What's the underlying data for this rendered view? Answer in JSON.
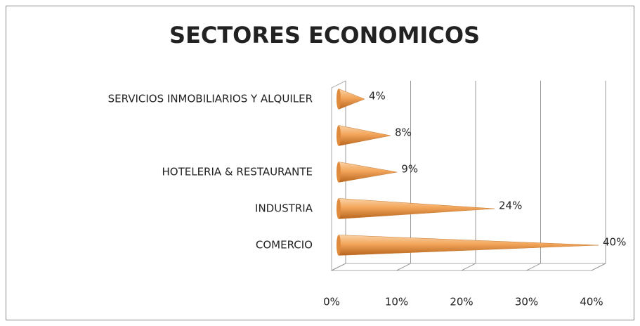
{
  "chart_data": {
    "type": "cone-bar",
    "title": "SECTORES ECONOMICOS",
    "categories": [
      "COMERCIO",
      "INDUSTRIA",
      "HOTELERIA & RESTAURANTE",
      null,
      "SERVICIOS INMOBILIARIOS Y ALQUILER"
    ],
    "values": [
      40,
      24,
      9,
      8,
      4
    ],
    "value_labels": [
      "40%",
      "24%",
      "9%",
      "8%",
      "4%"
    ],
    "color": "#f2a55a",
    "xlim": [
      0,
      40
    ],
    "xticks": [
      {
        "value": 0,
        "label": "0%"
      },
      {
        "value": 10,
        "label": "10%"
      },
      {
        "value": 20,
        "label": "20%"
      },
      {
        "value": 30,
        "label": "30%"
      },
      {
        "value": 40,
        "label": "40%"
      }
    ],
    "grid": true
  }
}
